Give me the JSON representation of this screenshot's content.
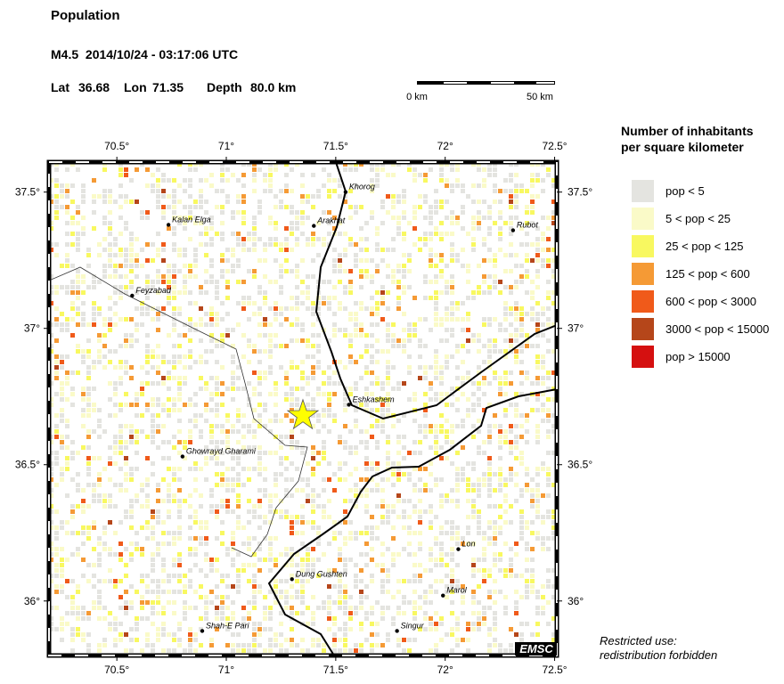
{
  "header": {
    "title": "Population",
    "event": "M4.5  2014/10/24 - 03:17:06 UTC",
    "lat_label": "Lat",
    "lat": 36.68,
    "lon_label": "Lon",
    "lon": 71.35,
    "depth_label": "Depth",
    "depth": "80.0 km"
  },
  "scale_bar": {
    "start": "0 km",
    "end": "50 km"
  },
  "map": {
    "xlim": [
      70.19,
      72.51
    ],
    "ylim": [
      35.8,
      37.61
    ],
    "xticks": [
      {
        "value": 70.5,
        "label": "70.5°"
      },
      {
        "value": 71,
        "label": "71°"
      },
      {
        "value": 71.5,
        "label": "71.5°"
      },
      {
        "value": 72,
        "label": "72°"
      },
      {
        "value": 72.5,
        "label": "72.5°"
      }
    ],
    "yticks": [
      {
        "value": 36,
        "label": "36°"
      },
      {
        "value": 36.5,
        "label": "36.5°"
      },
      {
        "value": 37,
        "label": "37°"
      },
      {
        "value": 37.5,
        "label": "37.5°"
      }
    ],
    "cities": [
      {
        "name": "Khorog",
        "lon": 71.545,
        "lat": 37.5
      },
      {
        "name": "Arakhat",
        "lon": 71.4,
        "lat": 37.376
      },
      {
        "name": "Kalan Elga",
        "lon": 70.736,
        "lat": 37.38
      },
      {
        "name": "Rubot",
        "lon": 72.31,
        "lat": 37.36
      },
      {
        "name": "Feyzabad",
        "lon": 70.57,
        "lat": 37.12
      },
      {
        "name": "Eshkashem",
        "lon": 71.56,
        "lat": 36.72
      },
      {
        "name": "Ghowrayd Gharami",
        "lon": 70.8,
        "lat": 36.53
      },
      {
        "name": "Lon",
        "lon": 72.06,
        "lat": 36.19
      },
      {
        "name": "Dung Gushten",
        "lon": 71.3,
        "lat": 36.08
      },
      {
        "name": "Marol",
        "lon": 71.99,
        "lat": 36.02
      },
      {
        "name": "Singur",
        "lon": 71.78,
        "lat": 35.89
      },
      {
        "name": "Shah-E Pari",
        "lon": 70.89,
        "lat": 35.89
      }
    ],
    "badge": "EMSC"
  },
  "legend": {
    "title": [
      "Number of inhabitants",
      "per square kilometer"
    ],
    "items": [
      {
        "label": "pop < 5",
        "color": "#e4e4e0"
      },
      {
        "label": "5 < pop < 25",
        "color": "#fafac8"
      },
      {
        "label": "25 < pop < 125",
        "color": "#f8f860"
      },
      {
        "label": "125 < pop < 600",
        "color": "#f59a35"
      },
      {
        "label": "600 < pop < 3000",
        "color": "#f05a1a"
      },
      {
        "label": "3000 < pop < 15000",
        "color": "#b5461a"
      },
      {
        "label": "pop > 15000",
        "color": "#d51010"
      }
    ]
  },
  "note": [
    "Restricted use:",
    "redistribution forbidden"
  ]
}
